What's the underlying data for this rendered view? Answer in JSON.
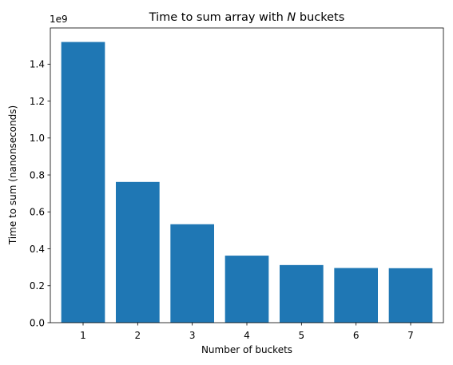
{
  "chart_data": {
    "type": "bar",
    "title_prefix": "Time to sum array with ",
    "title_var": "N",
    "title_suffix": " buckets",
    "xlabel": "Number of buckets",
    "ylabel": "Time to sum (nanonseconds)",
    "y_scale_label": "1e9",
    "categories": [
      "1",
      "2",
      "3",
      "4",
      "5",
      "6",
      "7"
    ],
    "values": [
      1520000000.0,
      762000000.0,
      533000000.0,
      363000000.0,
      312000000.0,
      296000000.0,
      295000000.0
    ],
    "ylim": [
      0,
      1596000000.0
    ],
    "yticks": [
      0,
      200000000.0,
      400000000.0,
      600000000.0,
      800000000.0,
      1000000000.0,
      1200000000.0,
      1400000000.0
    ],
    "ytick_labels": [
      "0.0",
      "0.2",
      "0.4",
      "0.6",
      "0.8",
      "1.0",
      "1.2",
      "1.4"
    ],
    "grid": false,
    "bar_color": "#1f77b4"
  }
}
